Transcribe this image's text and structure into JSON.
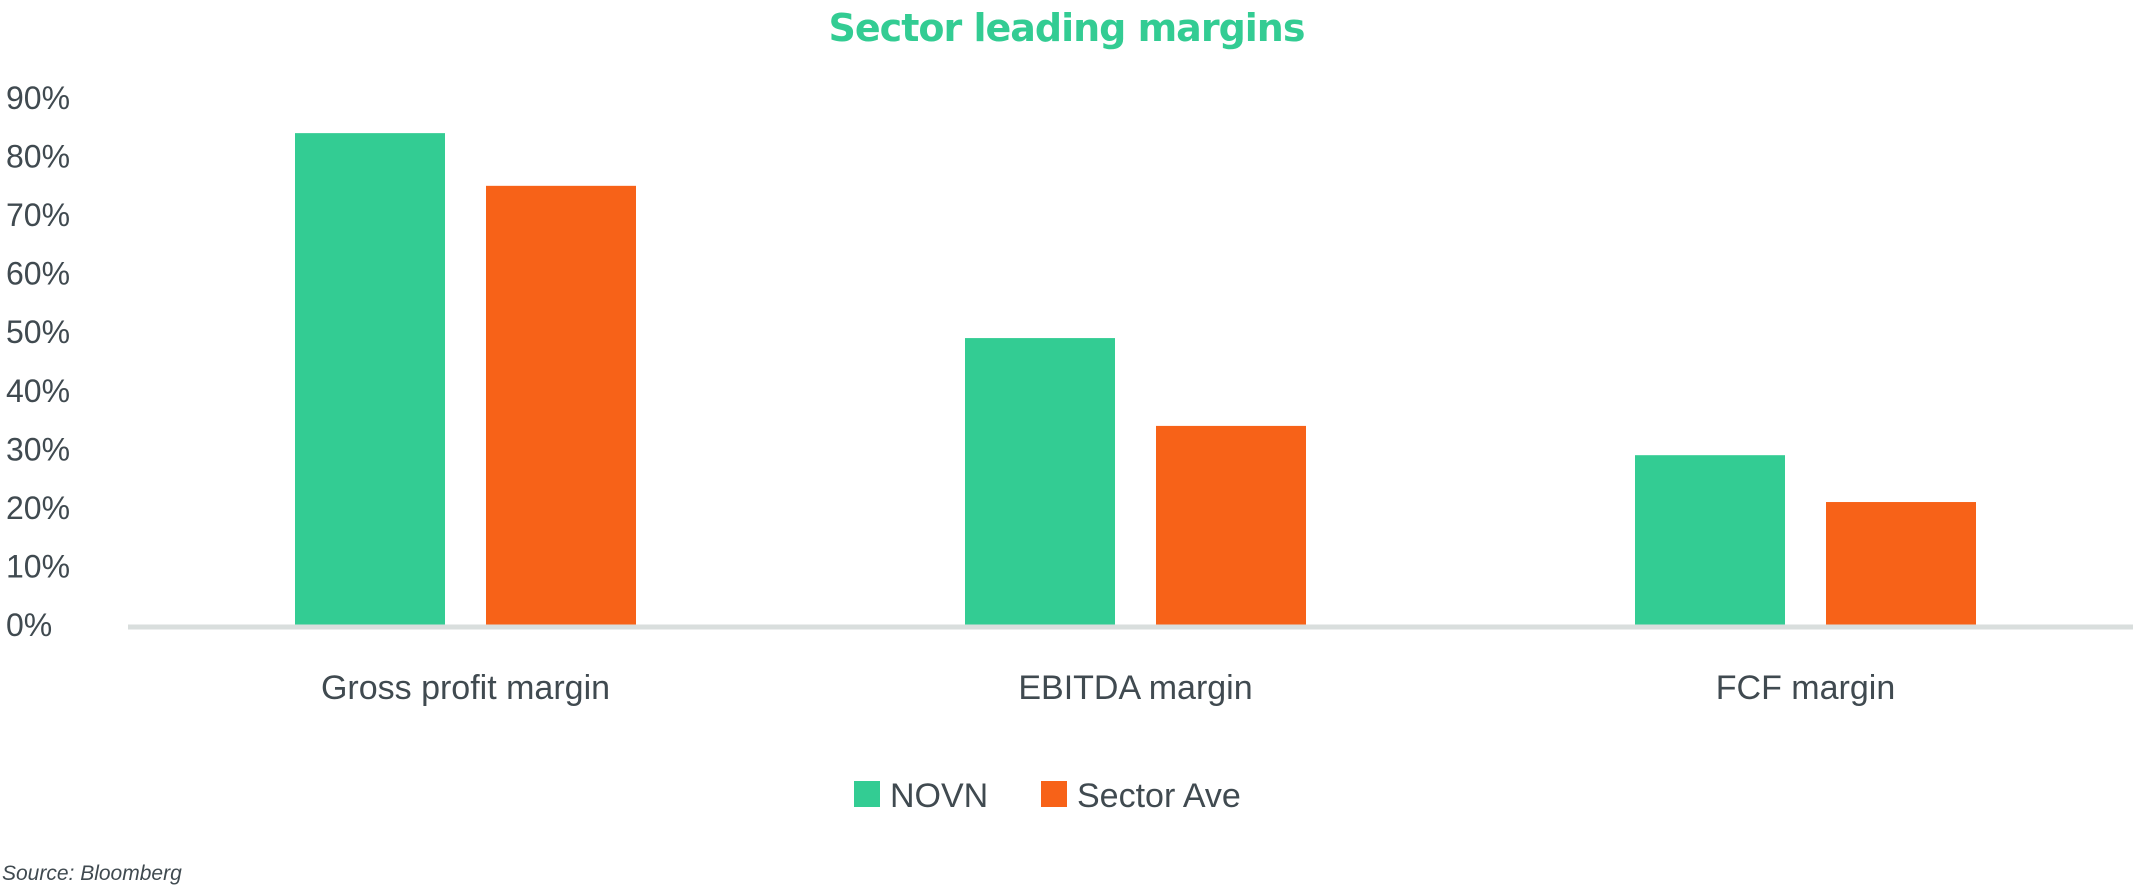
{
  "chart_data": {
    "type": "bar",
    "title": "Sector leading margins",
    "categories": [
      "Gross profit margin",
      "EBITDA margin",
      "FCF margin"
    ],
    "series": [
      {
        "name": "NOVN",
        "values": [
          84,
          49,
          29
        ],
        "color": "#33cc93"
      },
      {
        "name": "Sector Ave",
        "values": [
          75,
          34,
          21
        ],
        "color": "#f76218"
      }
    ],
    "y_ticks": [
      "0%",
      "10%",
      "20%",
      "30%",
      "40%",
      "50%",
      "60%",
      "70%",
      "80%",
      "90%"
    ],
    "ylim": [
      0,
      90
    ],
    "grid": false,
    "legend": "bottom-center"
  },
  "source": "Source: Bloomberg",
  "colors": {
    "title": "#33cc93",
    "axis": "#d9dedd",
    "text": "#404a50"
  }
}
